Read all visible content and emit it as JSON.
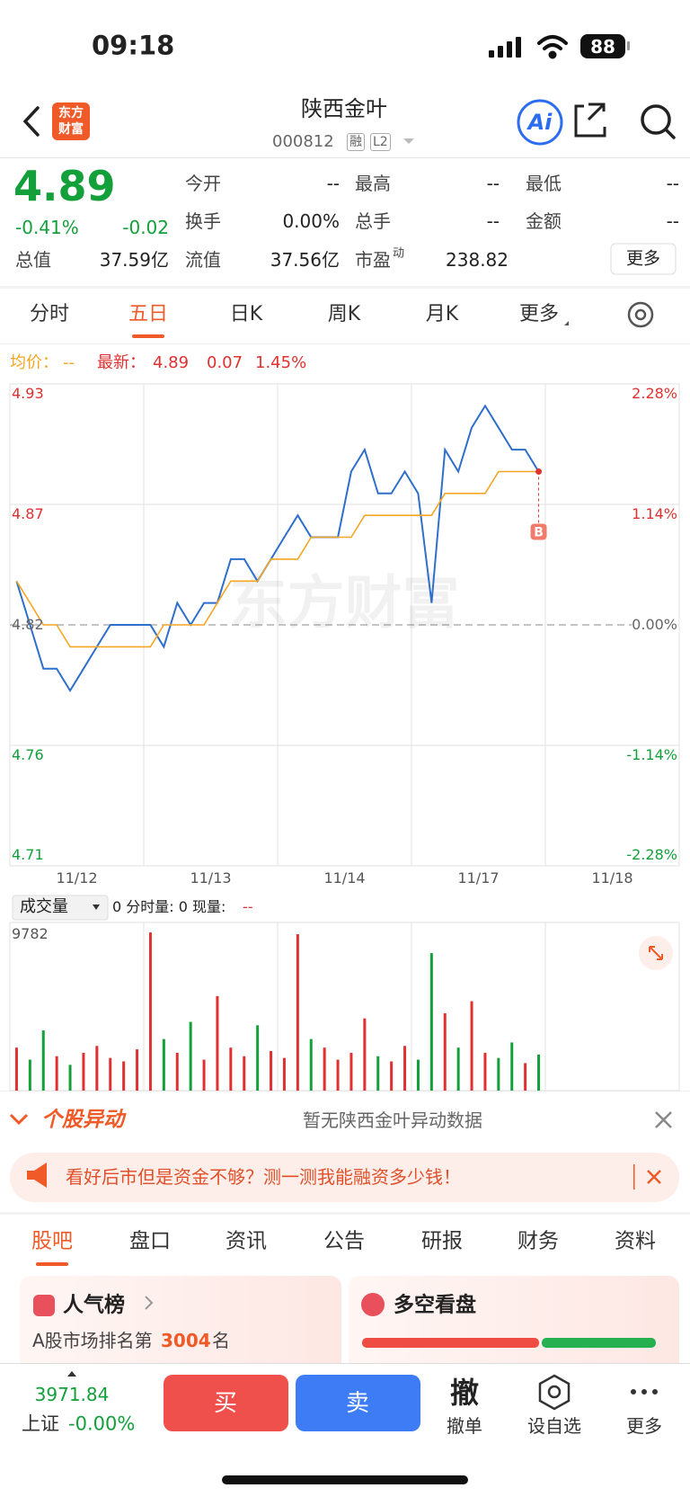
{
  "status": {
    "time": "09:18",
    "battery": "88"
  },
  "header": {
    "logo": [
      "东方",
      "财富"
    ],
    "name": "陕西金叶",
    "code": "000812",
    "tags": [
      "融",
      "L2"
    ],
    "ai": "Ai"
  },
  "quote": {
    "price": "4.89",
    "pct": "-0.41%",
    "change": "-0.02",
    "fields": [
      {
        "label": "今开",
        "value": "--"
      },
      {
        "label": "最高",
        "value": "--"
      },
      {
        "label": "最低",
        "value": "--"
      },
      {
        "label": "换手",
        "value": "0.00%"
      },
      {
        "label": "总手",
        "value": "--"
      },
      {
        "label": "金额",
        "value": "--"
      },
      {
        "label": "总值",
        "value": "37.59亿"
      },
      {
        "label": "流值",
        "value": "37.56亿"
      },
      {
        "label": "市盈",
        "sup": "动",
        "value": "238.82"
      }
    ],
    "more": "更多"
  },
  "tabs": {
    "items": [
      "分时",
      "五日",
      "日K",
      "周K",
      "月K",
      "更多"
    ],
    "active": 1
  },
  "price_chart": {
    "type": "line",
    "legend": {
      "avg_label": "均价：",
      "avg": "--",
      "latest_label": "最新：",
      "latest": [
        "4.89",
        "0.07",
        "1.45%"
      ]
    },
    "dates": [
      "11/12",
      "11/13",
      "11/14",
      "11/17",
      "11/18"
    ],
    "ylim": [
      4.71,
      4.93
    ],
    "yticks": [
      4.93,
      {
        "value": 4.875,
        "label": "4.87"
      },
      4.82,
      {
        "value": 4.765,
        "label": "4.76"
      },
      4.71
    ],
    "y2lim": [
      -2.28,
      2.28
    ],
    "y2ticks": [
      {
        "value": 2.28,
        "label": "2.28%"
      },
      {
        "value": 1.14,
        "label": "1.14%"
      },
      {
        "value": 0,
        "label": "0.00%"
      },
      {
        "value": -1.14,
        "label": "-1.14%"
      },
      {
        "value": -2.28,
        "label": "-2.28%"
      }
    ],
    "series": [
      {
        "color": "#2f6fcc",
        "values": [
          4.84,
          4.82,
          4.8,
          4.8,
          4.79,
          4.8,
          4.81,
          4.82,
          4.82,
          4.82,
          4.82,
          4.81,
          4.83,
          4.82,
          4.83,
          4.83,
          4.85,
          4.85,
          4.84,
          4.85,
          4.86,
          4.87,
          4.86,
          4.86,
          4.86,
          4.89,
          4.9,
          4.88,
          4.88,
          4.89,
          4.88,
          4.83,
          4.9,
          4.89,
          4.91,
          4.92,
          4.91,
          4.9,
          4.9,
          4.89,
          null,
          null,
          null,
          null,
          null,
          null,
          null,
          null,
          null,
          null
        ]
      },
      {
        "color": "#f5a623",
        "values": [
          4.84,
          4.83,
          4.82,
          4.82,
          4.81,
          4.81,
          4.81,
          4.81,
          4.81,
          4.81,
          4.81,
          4.82,
          4.82,
          4.82,
          4.82,
          4.83,
          4.84,
          4.84,
          4.84,
          4.85,
          4.85,
          4.85,
          4.86,
          4.86,
          4.86,
          4.86,
          4.87,
          4.87,
          4.87,
          4.87,
          4.87,
          4.87,
          4.88,
          4.88,
          4.88,
          4.88,
          4.89,
          4.89,
          4.89,
          4.89,
          null,
          null,
          null,
          null,
          null,
          null,
          null,
          null,
          null,
          null
        ]
      }
    ],
    "watermark": "东方财富",
    "marker": "B"
  },
  "volume": {
    "selector": "成交量",
    "info": "0 分时量: 0 现量:",
    "now": "--",
    "ylim": [
      0,
      9782
    ],
    "values": [
      2500,
      1800,
      3500,
      2000,
      1500,
      2200,
      2600,
      1900,
      1700,
      2400,
      9200,
      3000,
      2200,
      4000,
      1800,
      5500,
      2500,
      2000,
      3800,
      2300,
      1900,
      9100,
      3000,
      2500,
      1800,
      2200,
      4200,
      2000,
      1700,
      2600,
      1800,
      8000,
      4500,
      2500,
      5200,
      2200,
      1900,
      2800,
      1600,
      2100,
      null,
      null,
      null,
      null,
      null,
      null,
      null,
      null,
      null,
      null
    ]
  },
  "alert": {
    "title": "个股异动",
    "text": "暂无陕西金叶异动数据"
  },
  "banner": {
    "text": "看好后市但是资金不够？测一测我能融资多少钱！"
  },
  "tabs2": {
    "items": [
      "股吧",
      "盘口",
      "资讯",
      "公告",
      "研报",
      "财务",
      "资料"
    ],
    "active": 0
  },
  "cards": [
    {
      "title": "人气榜",
      "text": "A股市场排名第",
      "rank": "3004",
      "suffix": "名"
    },
    {
      "title": "多空看盘"
    }
  ],
  "bottom": {
    "index": "3971.84",
    "index_name": "上证",
    "index_change": "-0.00%",
    "buy": "买",
    "sell": "卖",
    "items": [
      {
        "icon": "撤",
        "label": "撤单"
      },
      {
        "label": "设自选"
      },
      {
        "label": "更多"
      }
    ]
  }
}
